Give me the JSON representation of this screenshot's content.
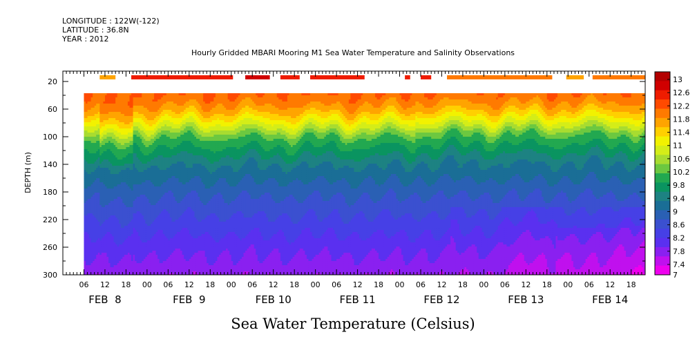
{
  "meta": {
    "longitude": "LONGITUDE : 122W(-122)",
    "latitude": "LATITUDE : 36.8N",
    "year": "YEAR : 2012"
  },
  "chart_data": {
    "type": "heatmap",
    "title": "Hourly Gridded MBARI Mooring M1 Sea Water Temperature and Salinity Observations",
    "xlabel": "Sea Water Temperature (Celsius)",
    "ylabel": "DEPTH (m)",
    "y_ticks": [
      20,
      60,
      100,
      140,
      180,
      220,
      260,
      300
    ],
    "ylim": [
      300,
      5
    ],
    "y_inverted": true,
    "x_hour_ticks": [
      "06",
      "12",
      "18",
      "00",
      "06",
      "12",
      "18",
      "00",
      "06",
      "12",
      "18",
      "00",
      "06",
      "12",
      "18",
      "00",
      "06",
      "12",
      "18",
      "00",
      "06",
      "12",
      "18",
      "00",
      "06",
      "12",
      "18"
    ],
    "x_date_labels": [
      "FEB  8",
      "FEB  9",
      "FEB 10",
      "FEB 11",
      "FEB 12",
      "FEB 13",
      "FEB 14"
    ],
    "xlim_hours_from_feb8_00": [
      0,
      166
    ],
    "colorbar": {
      "levels": [
        "13",
        "12.6",
        "12.2",
        "11.8",
        "11.4",
        "11",
        "10.6",
        "10.2",
        "9.8",
        "9.4",
        "9",
        "8.6",
        "8.2",
        "7.8",
        "7.4",
        "7"
      ],
      "colors": [
        "#b30000",
        "#d00000",
        "#ef1c00",
        "#ff4a00",
        "#ff7a00",
        "#ffa400",
        "#ffd000",
        "#f2f200",
        "#d4ed18",
        "#a8dc30",
        "#6cc840",
        "#22a850",
        "#0a9460",
        "#1d8282",
        "#1a6e96",
        "#2a60b4",
        "#3b50d0",
        "#4640e6",
        "#5a30f0",
        "#8a20f0",
        "#c010ee",
        "#ee00ee"
      ]
    },
    "depth_profile_typical": [
      {
        "depth": 40,
        "temp": 11.9
      },
      {
        "depth": 60,
        "temp": 11.5
      },
      {
        "depth": 80,
        "temp": 10.8
      },
      {
        "depth": 100,
        "temp": 10.0
      },
      {
        "depth": 140,
        "temp": 9.2
      },
      {
        "depth": 180,
        "temp": 8.7
      },
      {
        "depth": 220,
        "temp": 8.3
      },
      {
        "depth": 260,
        "temp": 7.9
      },
      {
        "depth": 300,
        "temp": 7.6
      }
    ],
    "surface_20m_segments": [
      {
        "start": 10.5,
        "end": 15,
        "temp": 11.6
      },
      {
        "start": 19.5,
        "end": 48.5,
        "temp": 12.3
      },
      {
        "start": 52,
        "end": 59,
        "temp": 12.5
      },
      {
        "start": 62,
        "end": 67.5,
        "temp": 12.3
      },
      {
        "start": 70.5,
        "end": 86,
        "temp": 12.4
      },
      {
        "start": 97.5,
        "end": 99,
        "temp": 12.2
      },
      {
        "start": 102,
        "end": 105,
        "temp": 12.2
      },
      {
        "start": 109.5,
        "end": 139.5,
        "temp": 11.9
      },
      {
        "start": 143.5,
        "end": 148.5,
        "temp": 11.6
      },
      {
        "start": 151,
        "end": 166,
        "temp": 11.8
      }
    ]
  }
}
